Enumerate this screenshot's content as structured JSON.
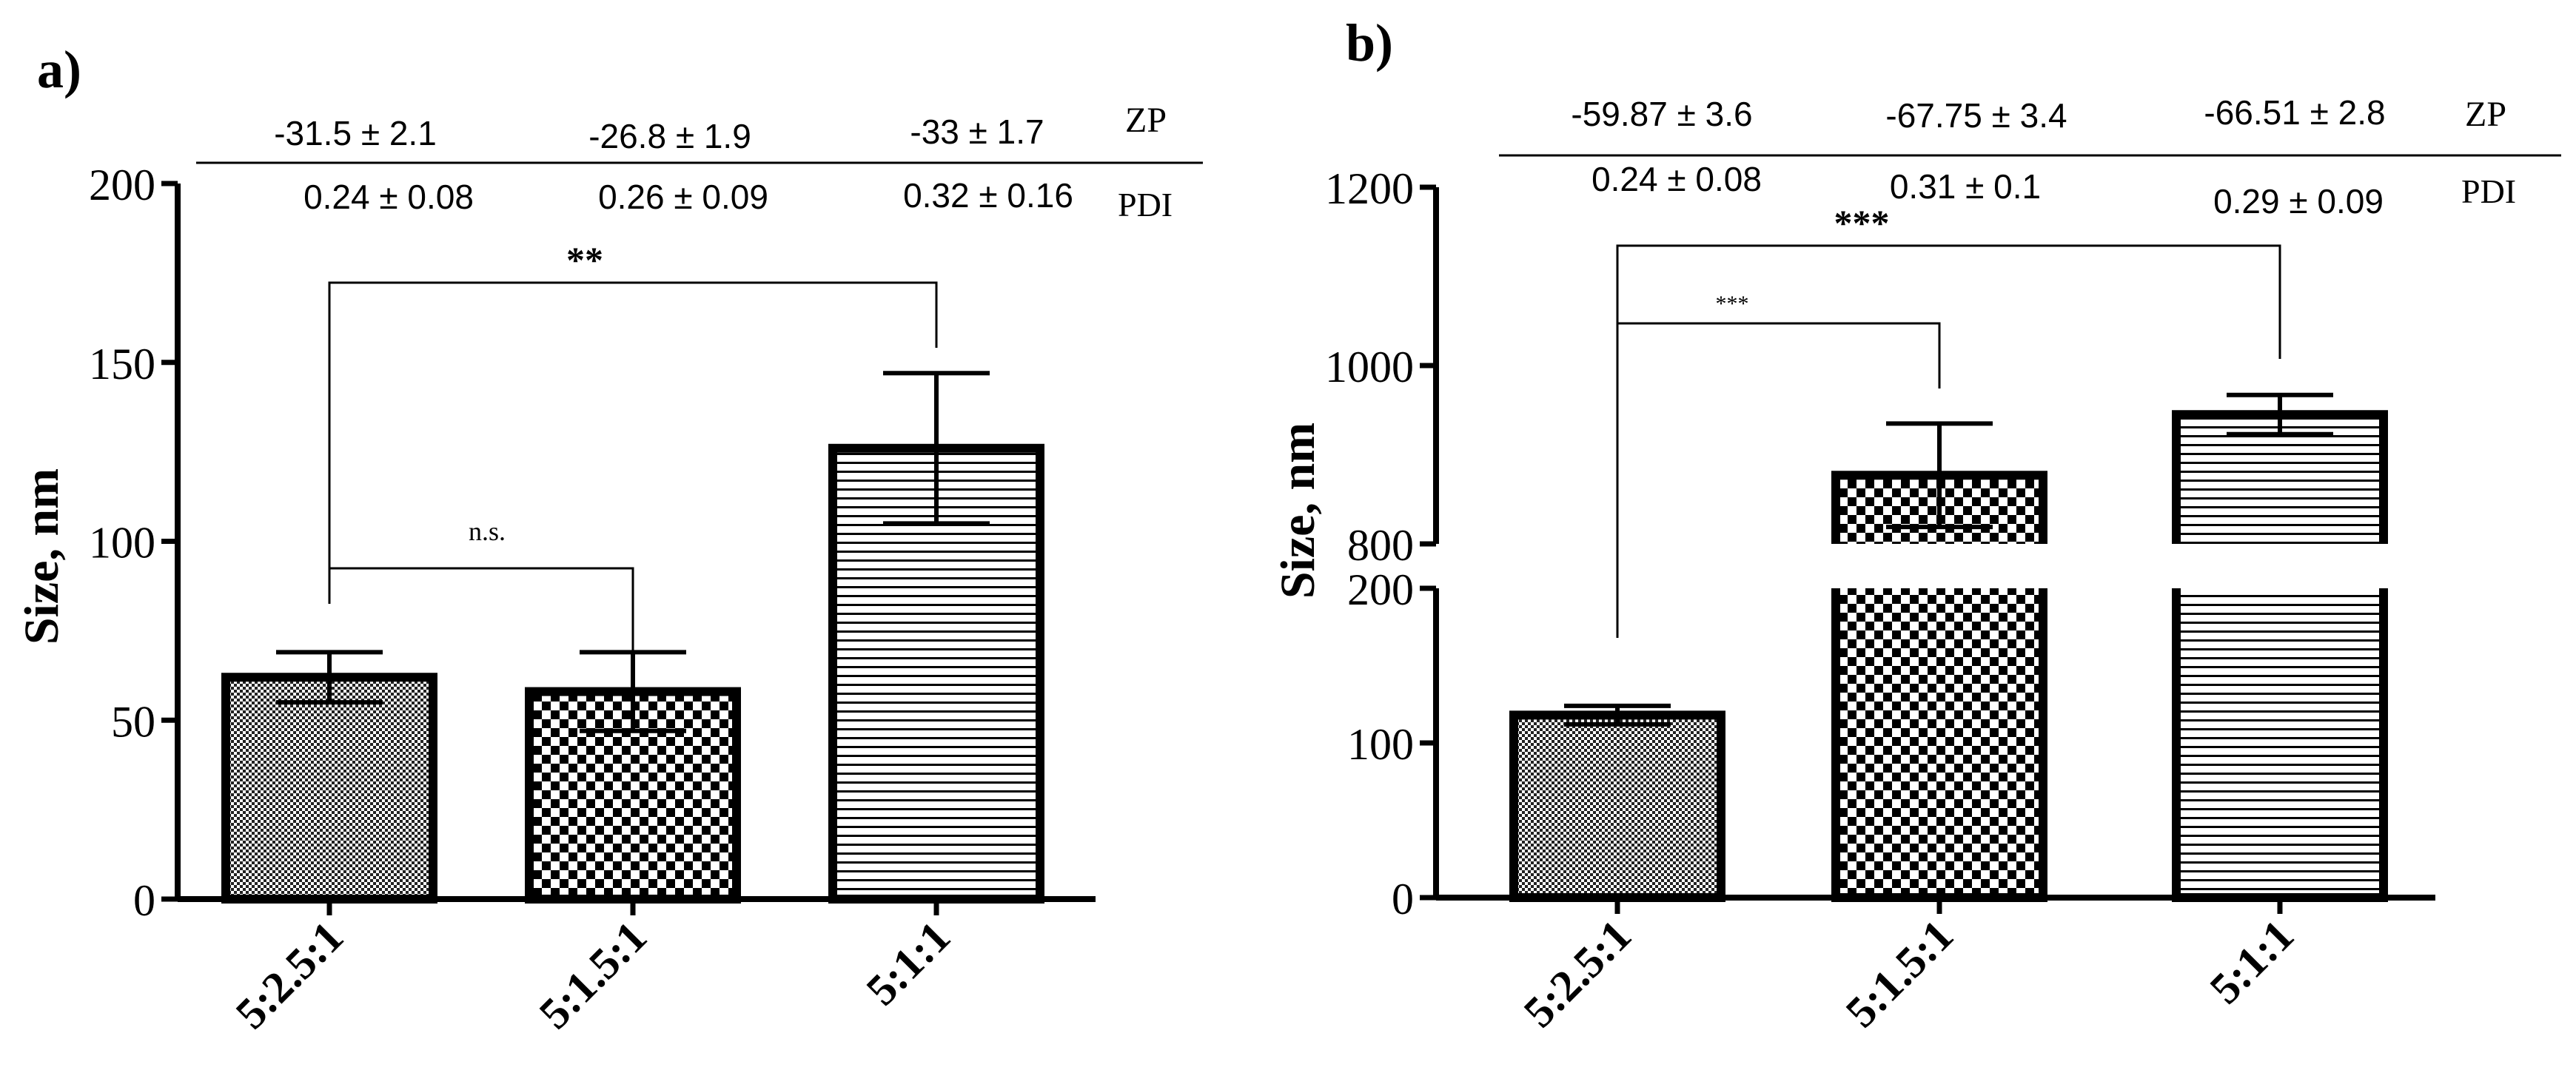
{
  "panels": [
    {
      "label": "a)",
      "ylabel": "Size, nm",
      "ZP_label": "ZP",
      "PDI_label": "PDI",
      "ZP_values": [
        "-31.5  ± 2.1",
        "-26.8 ± 1.9",
        "-33  ± 1.7"
      ],
      "PDI_values": [
        "0.24   ± 0.08",
        "0.26 ± 0.09",
        "0.32 ± 0.16"
      ],
      "sig_brackets": [
        {
          "from": 0,
          "to": 1,
          "label": "n.s."
        },
        {
          "from": 0,
          "to": 2,
          "label": "**"
        }
      ]
    },
    {
      "label": "b)",
      "ylabel": "Size, nm",
      "ZP_label": "ZP",
      "PDI_label": "PDI",
      "ZP_values": [
        "-59.87  ± 3.6",
        "-67.75 ± 3.4",
        "-66.51 ± 2.8"
      ],
      "PDI_values": [
        "0.24     ± 0.08",
        "0.31   ± 0.1",
        "0.29 ± 0.09"
      ],
      "sig_brackets": [
        {
          "from": 0,
          "to": 1,
          "label": "***"
        },
        {
          "from": 0,
          "to": 2,
          "label": "***"
        }
      ]
    }
  ],
  "colors": {
    "ink": "#000000",
    "background": "#ffffff"
  },
  "chart_data": [
    {
      "type": "bar",
      "title": "a)",
      "xlabel": "",
      "ylabel": "Size, nm",
      "categories": [
        "5:2.5:1",
        "5:1.5:1",
        "5:1:1"
      ],
      "values": [
        62,
        58,
        126
      ],
      "errors": [
        7,
        11,
        21
      ],
      "patterns": [
        "fine-dots",
        "checker",
        "horizontal-lines"
      ],
      "ylim": [
        0,
        200
      ],
      "yticks": [
        "0",
        "50",
        "100",
        "150",
        "200"
      ],
      "grid": false
    },
    {
      "type": "bar",
      "title": "b)",
      "xlabel": "",
      "ylabel": "Size, nm",
      "categories": [
        "5:2.5:1",
        "5:1.5:1",
        "5:1:1"
      ],
      "values": [
        118,
        877,
        945
      ],
      "errors": [
        6,
        58,
        22
      ],
      "patterns": [
        "fine-dots",
        "checker",
        "horizontal-lines"
      ],
      "axis_break": {
        "lower": [
          0,
          200
        ],
        "upper": [
          800,
          1200
        ]
      },
      "yticks": [
        "0",
        "100",
        "200",
        "800",
        "1000",
        "1200"
      ],
      "grid": false
    }
  ]
}
